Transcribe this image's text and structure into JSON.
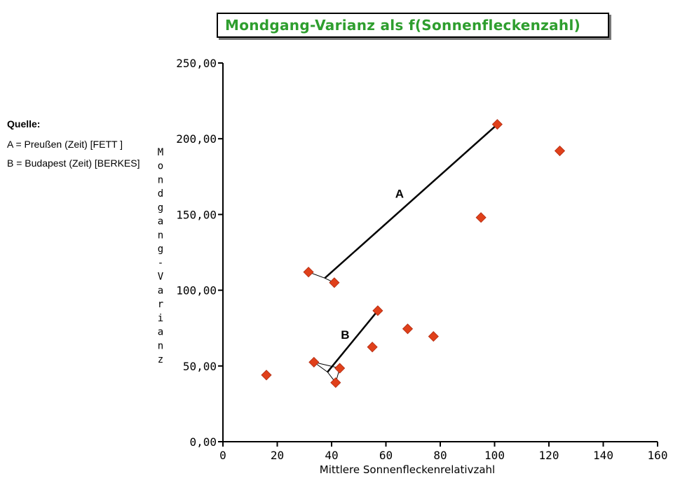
{
  "source": {
    "heading": "Quelle:",
    "lines": [
      "A = Preußen  (Zeit) [FETT ]",
      "B = Budapest  (Zeit) [BERKES]"
    ]
  },
  "chart_data": {
    "type": "scatter",
    "title": "Mondgang-Varianz als f(Sonnenfleckenzahl)",
    "xlabel": "Mittlere Sonnenfleckenrelativzahl",
    "ylabel": "Mondgang-Varianz",
    "xlim": [
      0,
      160
    ],
    "ylim": [
      0,
      250
    ],
    "xticks": [
      "0",
      "20",
      "40",
      "60",
      "80",
      "100",
      "120",
      "140",
      "160"
    ],
    "yticks": [
      "0,00",
      "50,00",
      "100,00",
      "150,00",
      "200,00",
      "250,00"
    ],
    "grid": false,
    "marker_color": "#e0401a",
    "points": [
      {
        "x": 16,
        "y": 44
      },
      {
        "x": 31.5,
        "y": 112
      },
      {
        "x": 33.5,
        "y": 52.5
      },
      {
        "x": 41,
        "y": 105
      },
      {
        "x": 41.5,
        "y": 39
      },
      {
        "x": 43,
        "y": 48.5
      },
      {
        "x": 55,
        "y": 62.5
      },
      {
        "x": 57,
        "y": 86.5
      },
      {
        "x": 68,
        "y": 74.5
      },
      {
        "x": 77.5,
        "y": 69.5
      },
      {
        "x": 95,
        "y": 148
      },
      {
        "x": 101,
        "y": 209.5
      },
      {
        "x": 124,
        "y": 192
      }
    ],
    "annotations": [
      {
        "label": "A",
        "x": 65,
        "y": 161,
        "line": {
          "from": [
            37.5,
            108
          ],
          "to": [
            101,
            209.5
          ]
        }
      },
      {
        "label": "B",
        "x": 45,
        "y": 68,
        "line": {
          "from": [
            38.5,
            46
          ],
          "to": [
            57,
            86.5
          ]
        }
      }
    ]
  }
}
